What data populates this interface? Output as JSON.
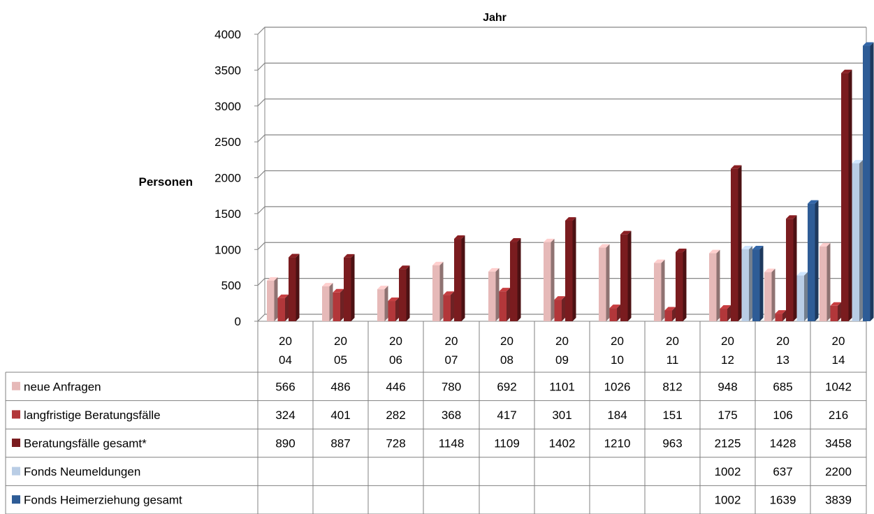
{
  "chart_data": {
    "type": "bar",
    "title": "Jahr",
    "ylabel": "Personen",
    "xlabel": "",
    "ylim": [
      0,
      4000
    ],
    "yticks": [
      0,
      500,
      1000,
      1500,
      2000,
      2500,
      3000,
      3500,
      4000
    ],
    "grid": true,
    "three_d": true,
    "legend_placement": "data-table-left",
    "categories": [
      "2004",
      "2005",
      "2006",
      "2007",
      "2008",
      "2009",
      "2010",
      "2011",
      "2012",
      "2013",
      "2014"
    ],
    "category_labels": [
      [
        "20",
        "04"
      ],
      [
        "20",
        "05"
      ],
      [
        "20",
        "06"
      ],
      [
        "20",
        "07"
      ],
      [
        "20",
        "08"
      ],
      [
        "20",
        "09"
      ],
      [
        "20",
        "10"
      ],
      [
        "20",
        "11"
      ],
      [
        "20",
        "12"
      ],
      [
        "20",
        "13"
      ],
      [
        "20",
        "14"
      ]
    ],
    "series": [
      {
        "name": "neue Anfragen",
        "color": "#e6b9b8",
        "values": [
          566,
          486,
          446,
          780,
          692,
          1101,
          1026,
          812,
          948,
          685,
          1042
        ]
      },
      {
        "name": "langfristige Beratungsfälle",
        "color": "#b2373a",
        "values": [
          324,
          401,
          282,
          368,
          417,
          301,
          184,
          151,
          175,
          106,
          216
        ]
      },
      {
        "name": "Beratungsfälle gesamt*",
        "color": "#7a1c1f",
        "values": [
          890,
          887,
          728,
          1148,
          1109,
          1402,
          1210,
          963,
          2125,
          1428,
          3458
        ]
      },
      {
        "name": "Fonds Neumeldungen",
        "color": "#b9cde5",
        "values": [
          null,
          null,
          null,
          null,
          null,
          null,
          null,
          null,
          1002,
          637,
          2200
        ]
      },
      {
        "name": "Fonds Heimerziehung gesamt",
        "color": "#2e5c96",
        "values": [
          null,
          null,
          null,
          null,
          null,
          null,
          null,
          null,
          1002,
          1639,
          3839
        ]
      }
    ]
  }
}
